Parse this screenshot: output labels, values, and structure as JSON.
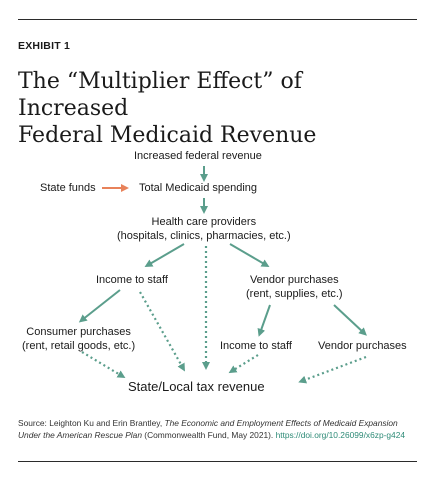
{
  "exhibit_label": "EXHIBIT 1",
  "title": {
    "line1": "The “Multiplier Effect” of Increased",
    "line2": "Federal Medicaid Revenue"
  },
  "nodes": {
    "increased_federal_revenue": "Increased federal revenue",
    "state_funds": "State funds",
    "total_medicaid_spending": "Total Medicaid spending",
    "health_care_providers_line1": "Health care providers",
    "health_care_providers_line2": "(hospitals, clinics, pharmacies, etc.)",
    "income_to_staff_left": "Income to staff",
    "vendor_purchases_top_line1": "Vendor purchases",
    "vendor_purchases_top_line2": "(rent, supplies, etc.)",
    "consumer_purchases_line1": "Consumer purchases",
    "consumer_purchases_line2": "(rent, retail goods, etc.)",
    "income_to_staff_right": "Income to staff",
    "vendor_purchases_bottom": "Vendor purchases",
    "state_local_tax_revenue": "State/Local tax revenue"
  },
  "source": {
    "prefix": "Source: Leighton Ku and Erin Brantley, ",
    "work": "The Economic and Employment Effects of Medicaid Expansion Under the American Rescue Plan",
    "suffix": " (Commonwealth Fund, May 2021). ",
    "link": "https://doi.org/10.26099/x6zp-g424"
  },
  "colors": {
    "arrow_teal": "#5b9e8c",
    "arrow_orange": "#e8825a",
    "link_teal": "#2e8b77"
  }
}
